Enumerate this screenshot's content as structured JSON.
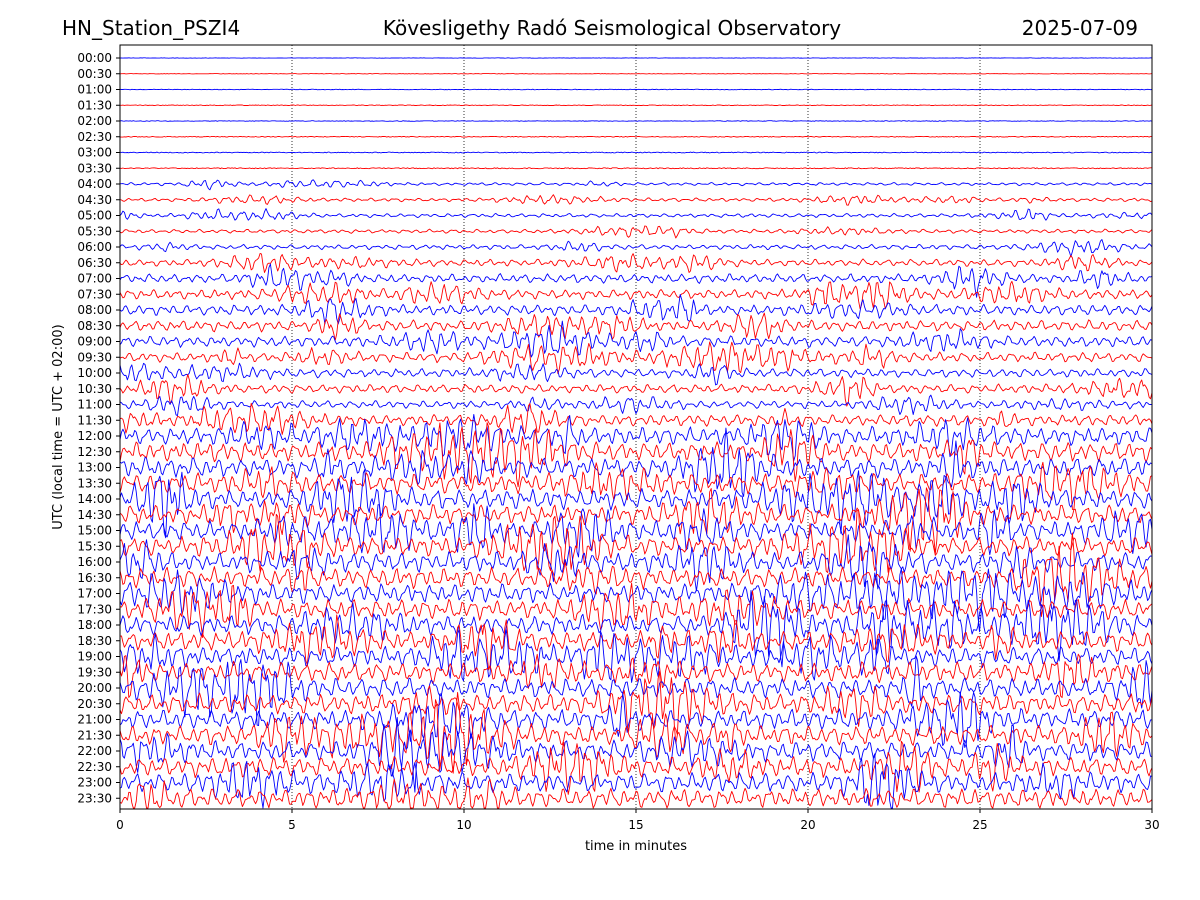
{
  "header": {
    "station": "HN_Station_PSZI4",
    "observatory": "Kövesligethy Radó Seismological Observatory",
    "date": "2025-07-09"
  },
  "colors": {
    "even_rows": "#0000ff",
    "odd_rows": "#ff0000",
    "grid": "#000000"
  },
  "chart_data": {
    "type": "line",
    "subtype": "helicorder",
    "xlabel": "time in minutes",
    "ylabel": "UTC (local time = UTC + 02:00)",
    "xlim": [
      0,
      30
    ],
    "xticks": [
      0,
      5,
      10,
      15,
      20,
      25,
      30
    ],
    "grid": "vertical dotted lines at each x tick",
    "row_labels": [
      "00:00",
      "00:30",
      "01:00",
      "01:30",
      "02:00",
      "02:30",
      "03:00",
      "03:30",
      "04:00",
      "04:30",
      "05:00",
      "05:30",
      "06:00",
      "06:30",
      "07:00",
      "07:30",
      "08:00",
      "08:30",
      "09:00",
      "09:30",
      "10:00",
      "10:30",
      "11:00",
      "11:30",
      "12:00",
      "12:30",
      "13:00",
      "13:30",
      "14:00",
      "14:30",
      "15:00",
      "15:30",
      "16:00",
      "16:30",
      "17:00",
      "17:30",
      "18:00",
      "18:30",
      "19:00",
      "19:30",
      "20:00",
      "20:30",
      "21:00",
      "21:30",
      "22:00",
      "22:30",
      "23:00",
      "23:30"
    ],
    "row_colors": "alternating blue / red, starting with blue at 00:00",
    "relative_amplitude": [
      0.02,
      0.02,
      0.03,
      0.03,
      0.03,
      0.04,
      0.04,
      0.05,
      0.15,
      0.18,
      0.2,
      0.2,
      0.25,
      0.35,
      0.45,
      0.5,
      0.55,
      0.55,
      0.55,
      0.5,
      0.45,
      0.45,
      0.4,
      0.6,
      0.9,
      1.0,
      1.0,
      1.0,
      1.0,
      1.0,
      1.0,
      1.0,
      1.0,
      1.0,
      1.0,
      1.0,
      1.0,
      1.0,
      1.0,
      1.0,
      1.0,
      1.0,
      1.0,
      1.0,
      1.0,
      1.0,
      1.0,
      1.0
    ]
  }
}
